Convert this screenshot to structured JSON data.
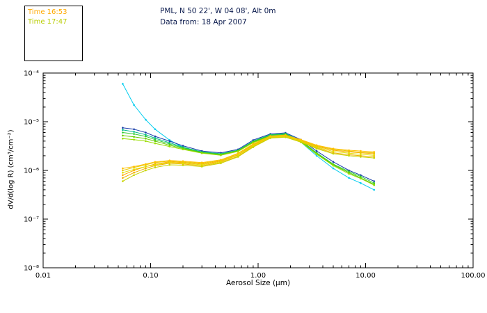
{
  "header": {
    "line1": "PML, N 50 22', W 04 08', Alt 0m",
    "line2": "Data from: 18 Apr 2007"
  },
  "legend": {
    "entries": [
      {
        "label": "Time 16:53",
        "color": "#ffaa00"
      },
      {
        "label": "Time 17:47",
        "color": "#b8cc00"
      }
    ]
  },
  "axes": {
    "x_label": "Aerosol Size (μm)",
    "y_label": "dV/d(log R) (cm³/cm⁻²)"
  },
  "chart_data": {
    "type": "line",
    "title": "",
    "xlabel": "Aerosol Size (μm)",
    "ylabel": "dV/d(log R) (cm³/cm⁻²)",
    "x_scale": "log",
    "y_scale": "log",
    "xlim": [
      0.01,
      100
    ],
    "ylim": [
      1e-08,
      0.0001
    ],
    "grid": false,
    "legend_position": "top-left",
    "xticks": [
      {
        "value": 0.01,
        "label": "0.01"
      },
      {
        "value": 0.1,
        "label": "0.10"
      },
      {
        "value": 1,
        "label": "1.00"
      },
      {
        "value": 10,
        "label": "10.00"
      },
      {
        "value": 100,
        "label": "100.00"
      }
    ],
    "yticks": [
      {
        "value": 0.0001,
        "label": "10⁻⁴"
      },
      {
        "value": 1e-05,
        "label": "10⁻⁵"
      },
      {
        "value": 1e-06,
        "label": "10⁻⁶"
      },
      {
        "value": 1e-07,
        "label": "10⁻⁷"
      },
      {
        "value": 1e-08,
        "label": "10⁻⁸"
      }
    ],
    "x": [
      0.055,
      0.07,
      0.09,
      0.11,
      0.15,
      0.2,
      0.3,
      0.45,
      0.65,
      0.9,
      1.3,
      1.8,
      2.5,
      3.5,
      5,
      7,
      9,
      12
    ],
    "series": [
      {
        "name": "t1747-cyan",
        "time": "17:47",
        "color": "#00ccee",
        "values": [
          6e-05,
          2.2e-05,
          1.1e-05,
          7e-06,
          4.2e-06,
          3e-06,
          2.3e-06,
          2.1e-06,
          2.5e-06,
          3.8e-06,
          5.2e-06,
          5.5e-06,
          3.8e-06,
          2e-06,
          1.1e-06,
          7e-07,
          5.5e-07,
          4e-07
        ]
      },
      {
        "name": "t1747-navy",
        "time": "17:47",
        "color": "#1a3faa",
        "values": [
          7.5e-06,
          7e-06,
          6e-06,
          5e-06,
          4e-06,
          3.2e-06,
          2.5e-06,
          2.3e-06,
          2.7e-06,
          4.2e-06,
          5.6e-06,
          5.9e-06,
          4.3e-06,
          2.5e-06,
          1.5e-06,
          1e-06,
          8e-07,
          6e-07
        ]
      },
      {
        "name": "t1747-teal",
        "time": "17:47",
        "color": "#00bb88",
        "values": [
          6.8e-06,
          6.2e-06,
          5.4e-06,
          4.6e-06,
          3.7e-06,
          3e-06,
          2.4e-06,
          2.2e-06,
          2.6e-06,
          4e-06,
          5.4e-06,
          5.7e-06,
          4.1e-06,
          2.3e-06,
          1.3e-06,
          9e-07,
          7e-07,
          5e-07
        ]
      },
      {
        "name": "t1747-green",
        "time": "17:47",
        "color": "#33cc33",
        "values": [
          6e-06,
          5.6e-06,
          5e-06,
          4.3e-06,
          3.5e-06,
          2.9e-06,
          2.35e-06,
          2.15e-06,
          2.55e-06,
          3.9e-06,
          5.3e-06,
          5.6e-06,
          4e-06,
          2.3e-06,
          1.35e-06,
          9.5e-07,
          7.5e-07,
          5.5e-07
        ]
      },
      {
        "name": "t1747-yellowgreen",
        "time": "17:47",
        "color": "#66cc00",
        "values": [
          5.2e-06,
          4.9e-06,
          4.5e-06,
          4e-06,
          3.3e-06,
          2.8e-06,
          2.3e-06,
          2.1e-06,
          2.5e-06,
          3.8e-06,
          5.1e-06,
          5.4e-06,
          3.9e-06,
          2.2e-06,
          1.3e-06,
          9e-07,
          7e-07,
          5.2e-07
        ]
      },
      {
        "name": "t1747-lime",
        "time": "17:47",
        "color": "#99dd00",
        "values": [
          4.5e-06,
          4.3e-06,
          4e-06,
          3.6e-06,
          3.1e-06,
          2.7e-06,
          2.25e-06,
          2.05e-06,
          2.45e-06,
          3.7e-06,
          5e-06,
          5.3e-06,
          3.8e-06,
          2.15e-06,
          1.25e-06,
          8.5e-07,
          6.8e-07,
          5e-07
        ]
      },
      {
        "name": "t1653-orange",
        "time": "16:53",
        "color": "#ffaa00",
        "values": [
          8e-07,
          1e-06,
          1.2e-06,
          1.35e-06,
          1.5e-06,
          1.45e-06,
          1.35e-06,
          1.55e-06,
          2.1e-06,
          3.3e-06,
          4.9e-06,
          5.1e-06,
          4.1e-06,
          3.1e-06,
          2.6e-06,
          2.4e-06,
          2.3e-06,
          2.2e-06
        ]
      },
      {
        "name": "t1653-amber",
        "time": "16:53",
        "color": "#f0b000",
        "values": [
          7e-07,
          9e-07,
          1.1e-06,
          1.25e-06,
          1.4e-06,
          1.35e-06,
          1.25e-06,
          1.45e-06,
          1.95e-06,
          3.1e-06,
          4.7e-06,
          4.9e-06,
          3.9e-06,
          2.9e-06,
          2.3e-06,
          2.1e-06,
          2e-06,
          1.9e-06
        ]
      },
      {
        "name": "t1653-gold",
        "time": "16:53",
        "color": "#e8c800",
        "values": [
          1e-06,
          1.15e-06,
          1.3e-06,
          1.45e-06,
          1.55e-06,
          1.5e-06,
          1.4e-06,
          1.6e-06,
          2.2e-06,
          3.4e-06,
          5e-06,
          5.2e-06,
          4.2e-06,
          3.2e-06,
          2.7e-06,
          2.5e-06,
          2.35e-06,
          2.3e-06
        ]
      },
      {
        "name": "t1653-yellow",
        "time": "16:53",
        "color": "#e0e000",
        "values": [
          9e-07,
          1.05e-06,
          1.2e-06,
          1.3e-06,
          1.45e-06,
          1.4e-06,
          1.3e-06,
          1.5e-06,
          2.05e-06,
          3.2e-06,
          4.8e-06,
          5e-06,
          4e-06,
          3e-06,
          2.45e-06,
          2.25e-06,
          2.15e-06,
          2.05e-06
        ]
      },
      {
        "name": "t1653-olive",
        "time": "16:53",
        "color": "#c8d400",
        "values": [
          6e-07,
          8e-07,
          1e-06,
          1.15e-06,
          1.3e-06,
          1.28e-06,
          1.2e-06,
          1.4e-06,
          1.9e-06,
          3e-06,
          4.6e-06,
          4.8e-06,
          3.8e-06,
          2.8e-06,
          2.2e-06,
          2e-06,
          1.9e-06,
          1.8e-06
        ]
      },
      {
        "name": "t1653-orange2",
        "time": "16:53",
        "color": "#ffc000",
        "values": [
          1.1e-06,
          1.2e-06,
          1.35e-06,
          1.5e-06,
          1.6e-06,
          1.55e-06,
          1.45e-06,
          1.65e-06,
          2.25e-06,
          3.5e-06,
          5.1e-06,
          5.3e-06,
          4.3e-06,
          3.3e-06,
          2.8e-06,
          2.6e-06,
          2.5e-06,
          2.4e-06
        ]
      }
    ]
  }
}
